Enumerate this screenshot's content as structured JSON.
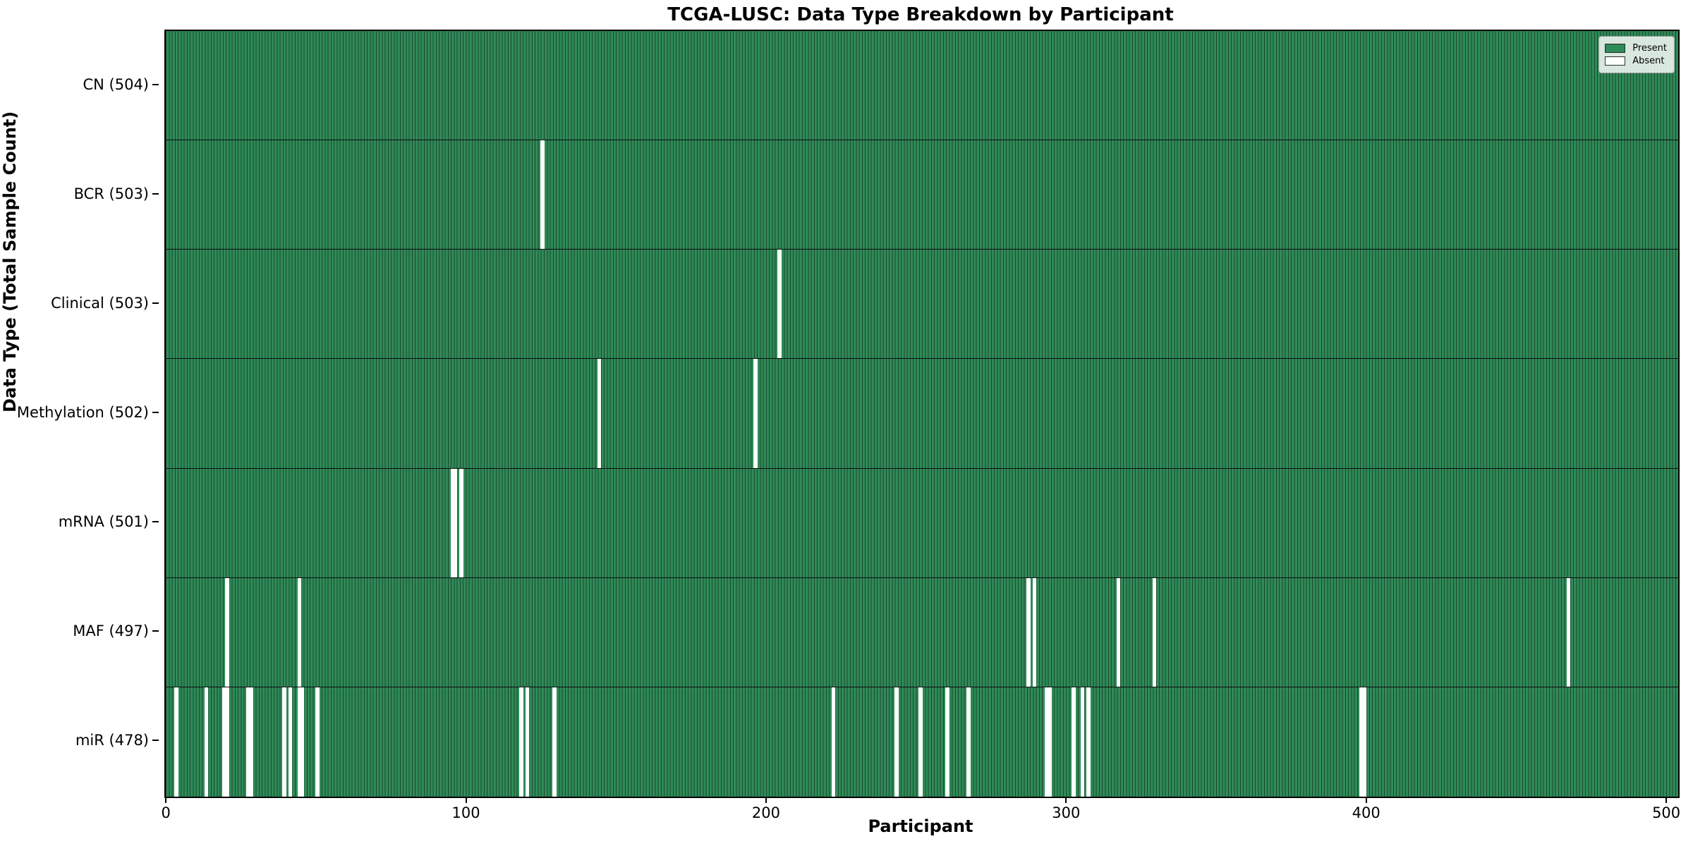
{
  "title": "TCGA-LUSC: Data Type Breakdown by Participant",
  "chart_data": {
    "type": "heatmap",
    "title": "TCGA-LUSC: Data Type Breakdown by Participant",
    "xlabel": "Participant",
    "ylabel": "Data Type (Total Sample Count)",
    "n_participants": 504,
    "xlim": [
      -0.5,
      503.5
    ],
    "xticks": [
      0,
      100,
      200,
      300,
      400,
      500
    ],
    "grid": false,
    "legend": {
      "position": "upper-right",
      "entries": [
        {
          "label": "Present",
          "color": "#2e8b57"
        },
        {
          "label": "Absent",
          "color": "#ffffff"
        }
      ]
    },
    "colors": {
      "present": "#2e8b57",
      "absent": "#ffffff",
      "bar_edge": "#1d4731",
      "axis": "#000000"
    },
    "rows": [
      {
        "label": "CN (504)",
        "data_type": "CN",
        "count": 504,
        "absent_participants": []
      },
      {
        "label": "BCR (503)",
        "data_type": "BCR",
        "count": 503,
        "absent_participants": [
          125
        ]
      },
      {
        "label": "Clinical (503)",
        "data_type": "Clinical",
        "count": 503,
        "absent_participants": [
          204
        ]
      },
      {
        "label": "Methylation (502)",
        "data_type": "Methylation",
        "count": 502,
        "absent_participants": [
          144,
          196
        ]
      },
      {
        "label": "mRNA (501)",
        "data_type": "mRNA",
        "count": 501,
        "absent_participants": [
          95,
          96,
          98
        ]
      },
      {
        "label": "MAF (497)",
        "data_type": "MAF",
        "count": 497,
        "absent_participants": [
          20,
          44,
          287,
          289,
          317,
          329,
          467
        ]
      },
      {
        "label": "miR (478)",
        "data_type": "miR",
        "count": 478,
        "absent_participants": [
          3,
          13,
          19,
          20,
          27,
          28,
          39,
          41,
          44,
          45,
          50,
          118,
          120,
          129,
          222,
          243,
          251,
          260,
          267,
          293,
          294,
          302,
          305,
          307,
          398,
          399
        ]
      }
    ]
  }
}
